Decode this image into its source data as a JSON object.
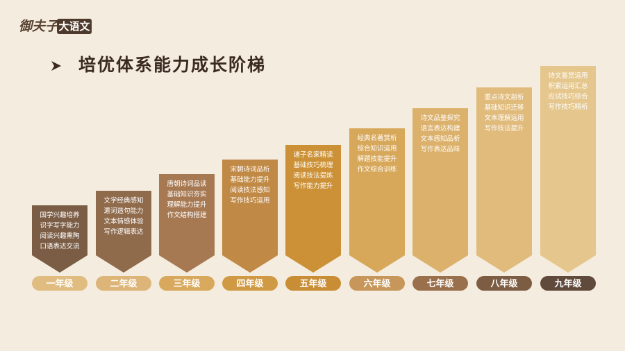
{
  "logo": {
    "name": "御夫子",
    "tag": "大语文"
  },
  "title": "培优体系能力成长阶梯",
  "stages": [
    {
      "grade": "一年级",
      "items": [
        "国学兴趣培养",
        "识字写字能力",
        "阅读兴趣熏陶",
        "口语表达交流"
      ]
    },
    {
      "grade": "二年级",
      "items": [
        "文学经典感知",
        "遣词造句能力",
        "文本情感体验",
        "写作逻辑表达"
      ]
    },
    {
      "grade": "三年级",
      "items": [
        "唐朝诗词品读",
        "基础知识夯实",
        "理解能力提升",
        "作文结构搭建"
      ]
    },
    {
      "grade": "四年级",
      "items": [
        "宋朝诗词品析",
        "基础能力提升",
        "阅读技法感知",
        "写作技巧运用"
      ]
    },
    {
      "grade": "五年级",
      "items": [
        "诸子名家精读",
        "基础技巧梳理",
        "阅读技法提炼",
        "写作能力提升"
      ]
    },
    {
      "grade": "六年级",
      "items": [
        "经典名著赏析",
        "综合知识运用",
        "解题技能提升",
        "作文综合训练"
      ]
    },
    {
      "grade": "七年级",
      "items": [
        "诗文品鉴探究",
        "语言表达构建",
        "文本感知品析",
        "写作表达品味"
      ]
    },
    {
      "grade": "八年级",
      "items": [
        "重点诗文剖析",
        "基础知识迁移",
        "文本理解运用",
        "写作技法提升"
      ]
    },
    {
      "grade": "九年级",
      "items": [
        "诗文鉴赏运用",
        "积累运用汇总",
        "应试技巧综合",
        "写作技巧精析"
      ]
    }
  ]
}
